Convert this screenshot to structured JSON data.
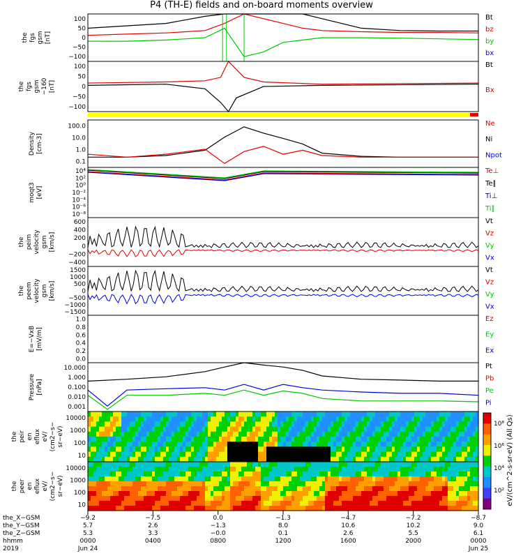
{
  "chart_data": {
    "type": "line",
    "title": "P4 (TH-E) fields and on-board moments overview",
    "panels": [
      {
        "ylabel_lines": [
          "the",
          "fgs",
          "gsm",
          "[nT]"
        ],
        "yticks": [
          "100",
          "50",
          "0",
          "−50",
          "−100"
        ],
        "legend": [
          {
            "name": "Bt",
            "color": "#000000"
          },
          {
            "name": "bz",
            "color": "#e00000"
          },
          {
            "name": "by",
            "color": "#00c800"
          },
          {
            "name": "bx",
            "color": "#0000dd"
          }
        ]
      },
      {
        "ylabel_lines": [
          "the",
          "fgs",
          "gsm",
          "−160",
          "[nT]"
        ],
        "yticks": [
          "100",
          "50",
          "0",
          "−50",
          "−100"
        ],
        "legend": [
          {
            "name": "Bt",
            "color": "#000000"
          },
          {
            "name": "Bx",
            "color": "#e00000"
          }
        ]
      },
      {
        "ylabel_lines": [
          "Density",
          "[cm-3]"
        ],
        "yticks": [
          "100.0",
          "10.0",
          "1.0",
          "0.1"
        ],
        "legend": [
          {
            "name": "Ne",
            "color": "#e00000"
          },
          {
            "name": "Ni",
            "color": "#000000"
          },
          {
            "name": "Npot",
            "color": "#0000dd"
          }
        ]
      },
      {
        "ylabel_lines": [
          "moqt3",
          "[eV]"
        ],
        "yticks": [
          "10⁴",
          "10²",
          "10⁰",
          "10⁻²",
          "10⁻⁴",
          "10⁻⁶",
          "10⁻⁸"
        ],
        "legend": [
          {
            "name": "Te⊥",
            "color": "#e00000"
          },
          {
            "name": "Te∥",
            "color": "#000000"
          },
          {
            "name": "Ti⊥",
            "color": "#0000dd"
          },
          {
            "name": "Ti∥",
            "color": "#00c800"
          }
        ]
      },
      {
        "ylabel_lines": [
          "the",
          "peim",
          "velocity",
          "gsm",
          "[km/s]"
        ],
        "yticks": [
          "600",
          "400",
          "200",
          "0",
          "−200",
          "−400"
        ],
        "legend": [
          {
            "name": "Vt",
            "color": "#000000"
          },
          {
            "name": "Vz",
            "color": "#e00000"
          },
          {
            "name": "Vy",
            "color": "#00c800"
          },
          {
            "name": "Vx",
            "color": "#0000dd"
          }
        ]
      },
      {
        "ylabel_lines": [
          "the",
          "peem",
          "velocity",
          "gsm",
          "[km/s]"
        ],
        "yticks": [
          "1500",
          "1000",
          "500",
          "0",
          "−500",
          "−1000",
          "−1500"
        ],
        "legend": [
          {
            "name": "Vt",
            "color": "#000000"
          },
          {
            "name": "Vz",
            "color": "#e00000"
          },
          {
            "name": "Vy",
            "color": "#00c800"
          },
          {
            "name": "Vx",
            "color": "#0000dd"
          }
        ]
      },
      {
        "ylabel_lines": [
          "E=−VxB",
          "[mV/m]"
        ],
        "yticks": [
          "1.0",
          "0.8",
          "0.6",
          "0.4",
          "0.2",
          "0.0"
        ],
        "legend": [
          {
            "name": "Ez",
            "color": "#e00000"
          },
          {
            "name": "Ey",
            "color": "#00c800"
          },
          {
            "name": "Ex",
            "color": "#0000dd"
          }
        ]
      },
      {
        "ylabel_lines": [
          "Pressure",
          "[nPa]"
        ],
        "yticks": [
          "10.000",
          "1.000",
          "0.100",
          "0.010",
          "0.001"
        ],
        "legend": [
          {
            "name": "Pt",
            "color": "#000000"
          },
          {
            "name": "Pb",
            "color": "#e00000"
          },
          {
            "name": "Pe",
            "color": "#00c800"
          },
          {
            "name": "Pi",
            "color": "#0000dd"
          }
        ]
      },
      {
        "ylabel_lines": [
          "the",
          "peir",
          "en",
          "eflux",
          "eV/",
          "(cm2−s−",
          "sr−eV)"
        ],
        "yticks": [
          "10000",
          "1000",
          "100",
          "10"
        ],
        "legend": []
      },
      {
        "ylabel_lines": [
          "the",
          "peer",
          "en",
          "eflux",
          "eV/",
          "(cm2−s−",
          "sr−eV)"
        ],
        "yticks": [
          "10000",
          "1000",
          "100",
          "10"
        ],
        "legend": []
      }
    ],
    "colorbar_label": "eV/(cm^2-s-sr-eV) (All Qs)",
    "colorbar_ticks": [
      "10⁸",
      "10⁶",
      "10⁴",
      "10²"
    ],
    "series_traces": {
      "fgs_Bt": {
        "x": [
          0,
          0.1,
          0.2,
          0.3,
          0.35,
          0.4,
          0.45,
          0.5,
          0.55,
          0.6,
          0.7,
          0.8,
          0.9,
          1.0
        ],
        "y": [
          40,
          50,
          60,
          90,
          130,
          160,
          150,
          140,
          120,
          80,
          40,
          30,
          28,
          28
        ]
      },
      "fgs_bz": {
        "x": [
          0,
          0.1,
          0.2,
          0.3,
          0.35,
          0.4,
          0.45,
          0.5,
          0.55,
          0.6,
          0.7,
          0.8,
          0.9,
          1.0
        ],
        "y": [
          10,
          15,
          20,
          30,
          60,
          100,
          80,
          60,
          40,
          30,
          25,
          22,
          22,
          20
        ]
      },
      "fgs_by": {
        "x": [
          0,
          0.1,
          0.2,
          0.3,
          0.35,
          0.4,
          0.45,
          0.5,
          0.55,
          0.6,
          0.7,
          0.8,
          0.9,
          1.0
        ],
        "y": [
          -15,
          -15,
          -10,
          0,
          40,
          -80,
          -60,
          -20,
          -10,
          0,
          0,
          -2,
          -5,
          -8
        ]
      },
      "density_Ne": {
        "x": [
          0,
          0.1,
          0.2,
          0.3,
          0.35,
          0.4,
          0.45,
          0.5,
          0.55,
          0.6,
          0.7,
          0.8,
          0.9,
          1.0
        ],
        "y": [
          0.5,
          0.3,
          0.5,
          1.2,
          0.1,
          0.8,
          2.0,
          0.5,
          1.0,
          0.4,
          0.3,
          0.3,
          0.3,
          0.3
        ]
      },
      "density_Ni": {
        "x": [
          0,
          0.1,
          0.2,
          0.3,
          0.35,
          0.4,
          0.45,
          0.5,
          0.55,
          0.6,
          0.7,
          0.8,
          0.9,
          1.0
        ],
        "y": [
          0.3,
          0.3,
          0.4,
          1.0,
          10,
          60,
          20,
          8,
          3,
          0.6,
          0.35,
          0.3,
          0.3,
          0.3
        ]
      },
      "pressure_Pt": {
        "x": [
          0,
          0.1,
          0.2,
          0.3,
          0.35,
          0.4,
          0.45,
          0.5,
          0.55,
          0.6,
          0.7,
          0.8,
          0.9,
          1.0
        ],
        "y": [
          0.4,
          0.6,
          1.0,
          3,
          8,
          20,
          12,
          8,
          4,
          1.2,
          0.6,
          0.5,
          0.4,
          0.4
        ]
      },
      "pressure_Pi": {
        "x": [
          0,
          0.05,
          0.1,
          0.2,
          0.3,
          0.35,
          0.4,
          0.45,
          0.5,
          0.55,
          0.6,
          0.7,
          0.8,
          0.9,
          1.0
        ],
        "y": [
          0.06,
          0.002,
          0.06,
          0.08,
          0.1,
          0.06,
          0.2,
          0.06,
          0.2,
          0.1,
          0.06,
          0.04,
          0.03,
          0.03,
          0.02
        ]
      },
      "pressure_Pe": {
        "x": [
          0,
          0.05,
          0.1,
          0.2,
          0.3,
          0.35,
          0.4,
          0.45,
          0.5,
          0.55,
          0.6,
          0.7,
          0.8,
          0.9,
          1.0
        ],
        "y": [
          0.02,
          0.001,
          0.02,
          0.02,
          0.03,
          0.02,
          0.06,
          0.02,
          0.05,
          0.03,
          0.01,
          0.006,
          0.006,
          0.006,
          0.005
        ]
      }
    },
    "x_axis": {
      "row_labels": [
        "the_X−GSM",
        "the_Y−GSM",
        "the_Z−GSM",
        "hhmm",
        "2019"
      ],
      "ticks": [
        {
          "x": "−9.2",
          "y": "5.7",
          "z": "5.3",
          "t": "0000",
          "d": "Jun 24"
        },
        {
          "x": "−7.5",
          "y": "2.6",
          "z": "3.3",
          "t": "0400",
          "d": ""
        },
        {
          "x": "0.0",
          "y": "−1.3",
          "z": "−0.0",
          "t": "0800",
          "d": ""
        },
        {
          "x": "−1.3",
          "y": "8.0",
          "z": "0.1",
          "t": "1200",
          "d": ""
        },
        {
          "x": "−4.7",
          "y": "10.6",
          "z": "2.6",
          "t": "1600",
          "d": ""
        },
        {
          "x": "−7.2",
          "y": "10.2",
          "z": "5.5",
          "t": "2000",
          "d": ""
        },
        {
          "x": "−8.7",
          "y": "9.0",
          "z": "6.1",
          "t": "0000",
          "d": "Jun 25"
        }
      ]
    }
  }
}
